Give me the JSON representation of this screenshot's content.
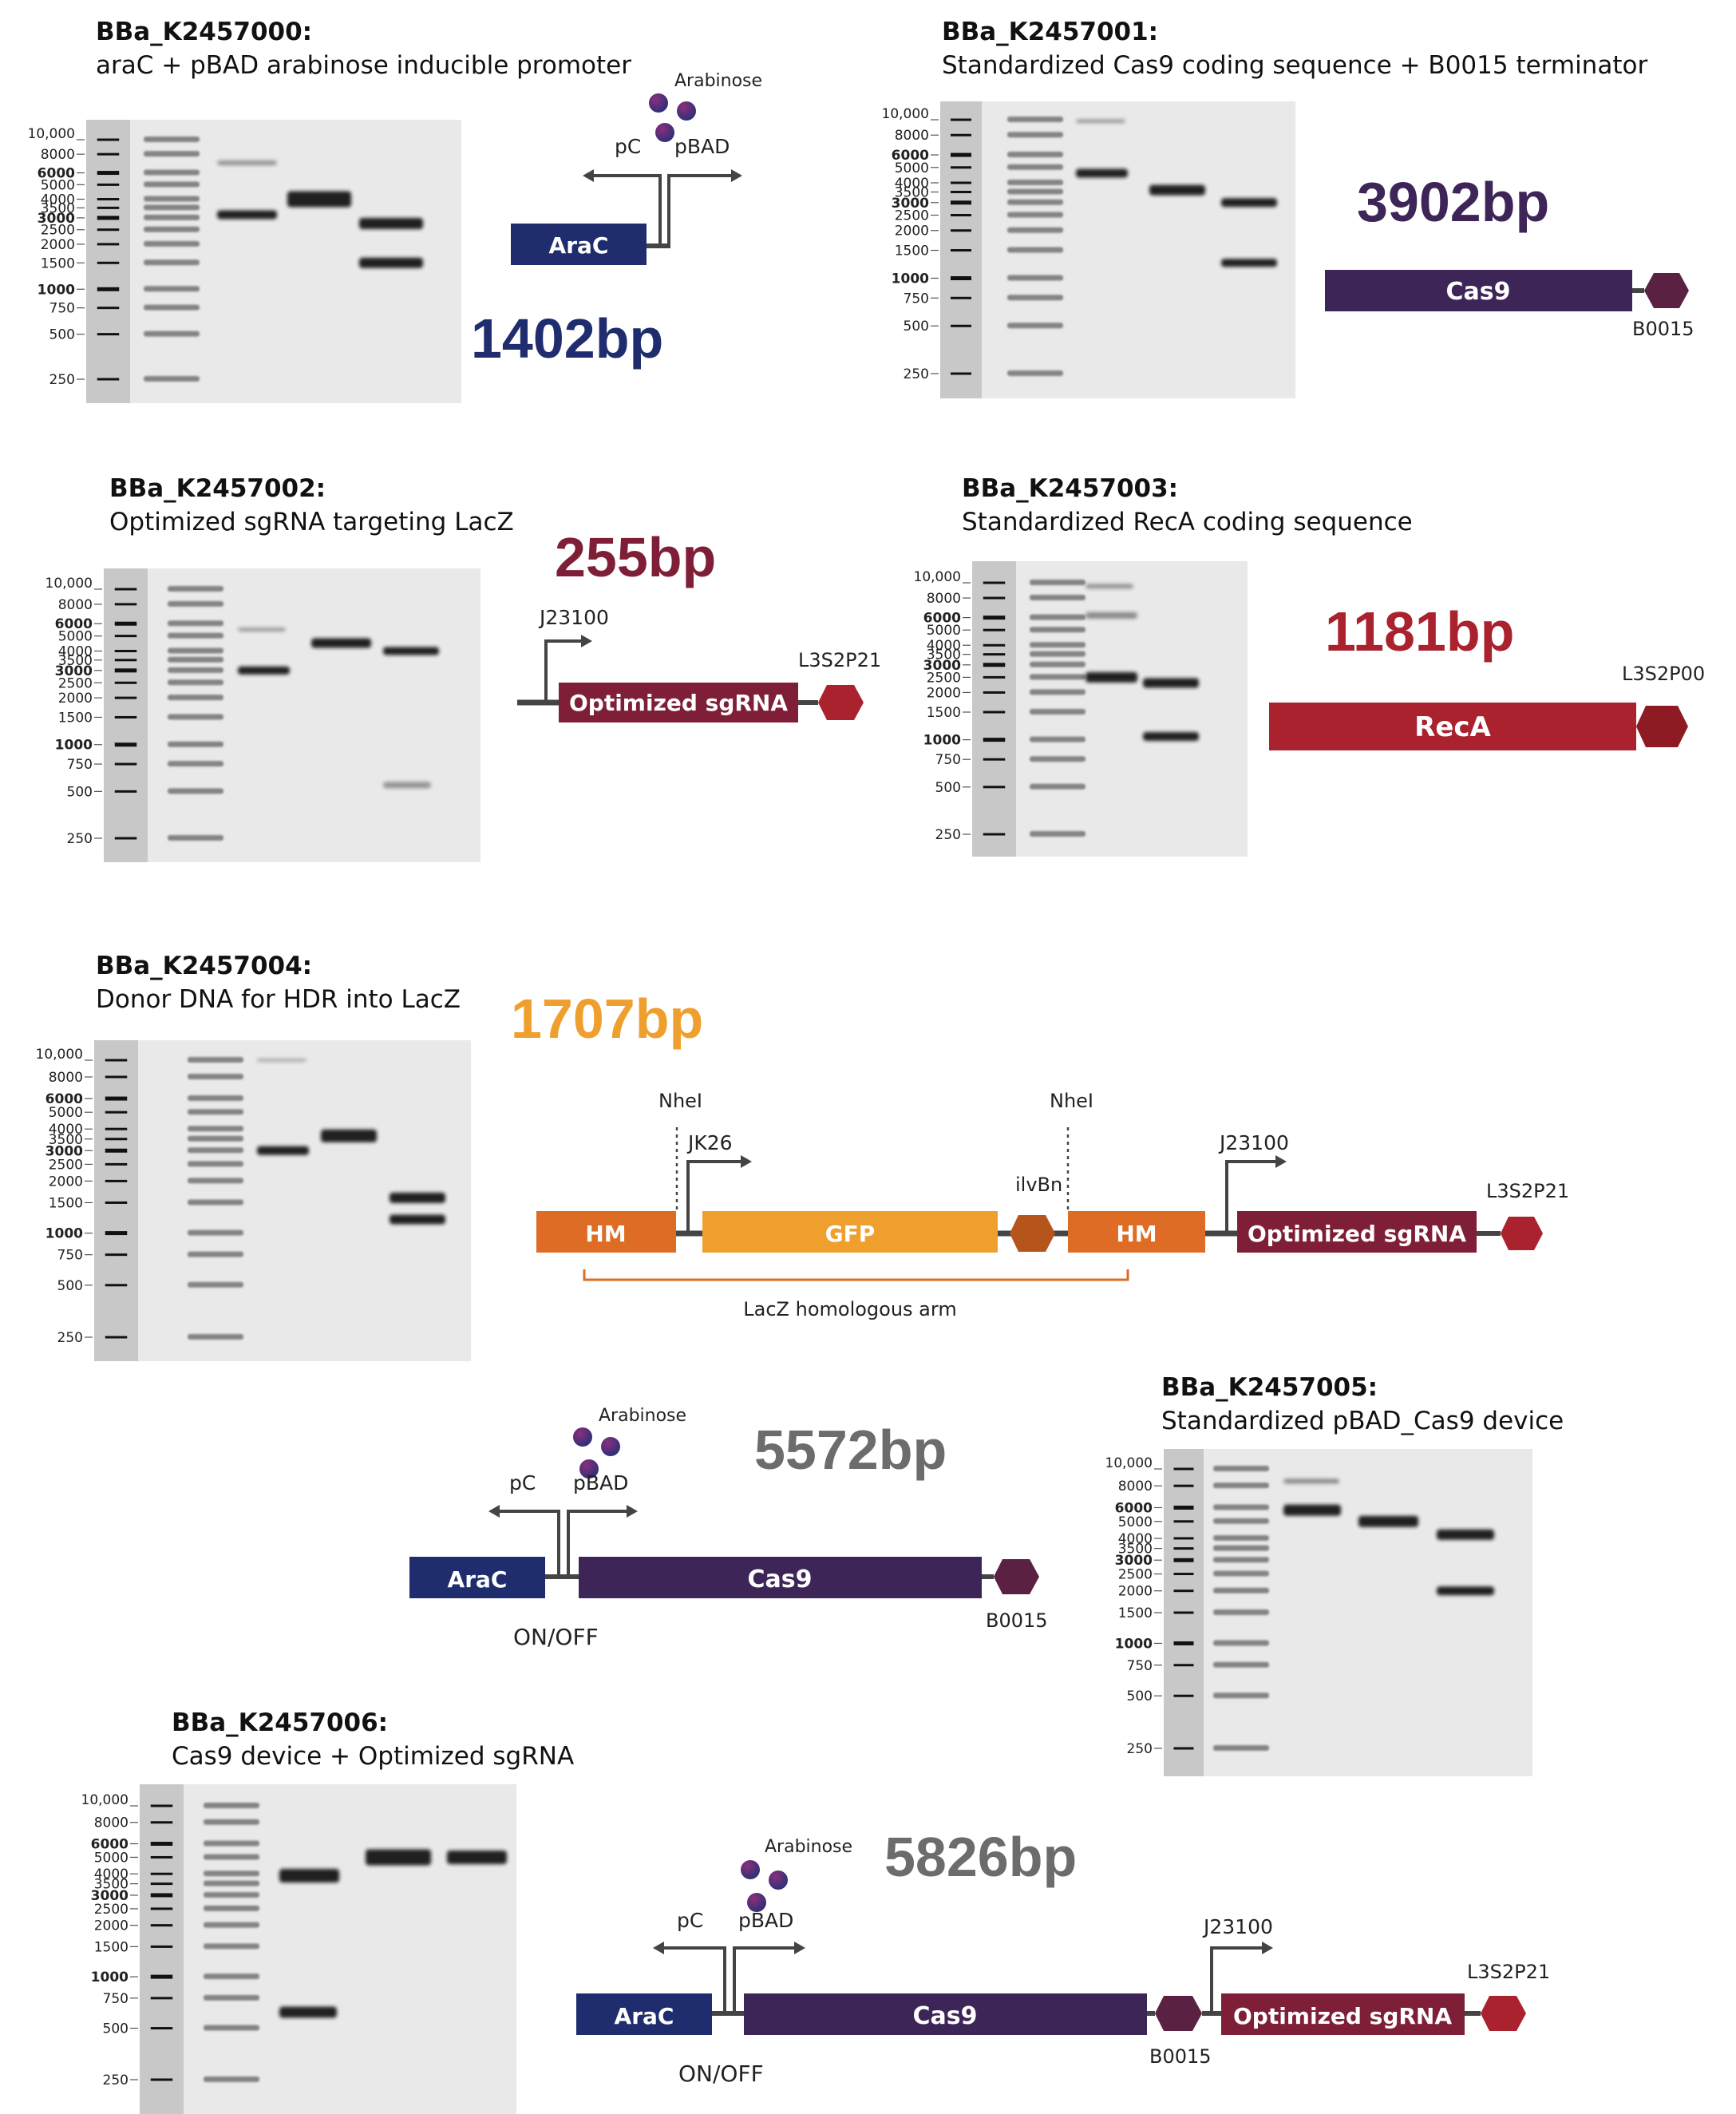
{
  "colors": {
    "navy": "#1f2d6e",
    "purple": "#3e2558",
    "plum": "#5a2143",
    "maroon": "#7f1f37",
    "red": "#a9222e",
    "dark_red": "#8e1a23",
    "orange": "#de6c24",
    "light_orange": "#ef9f2e",
    "dark_orange": "#b5551c",
    "grey_text": "#6c6c6c",
    "gel_ladder": "#c8c8c8",
    "gel_bg": "#e9e9e9",
    "band": "#141414"
  },
  "ladder_labels": [
    "10,000",
    "8000",
    "6000",
    "5000",
    "4000",
    "3500",
    "3000",
    "2500",
    "2000",
    "1500",
    "1000",
    "750",
    "500",
    "250"
  ],
  "ladder_bold": [
    "6000",
    "3000",
    "1000"
  ],
  "parts": {
    "k2457000": {
      "id": "BBa_K2457000:",
      "description": "araC + pBAD arabinose inducible promoter",
      "length": "1402bp",
      "diagram": {
        "inducer": "Arabinose",
        "promoter_left": "pC",
        "promoter_right": "pBAD",
        "gene": "AraC"
      }
    },
    "k2457001": {
      "id": "BBa_K2457001:",
      "description": "Standardized Cas9 coding sequence + B0015 terminator",
      "length": "3902bp",
      "diagram": {
        "gene": "Cas9",
        "terminator": "B0015"
      }
    },
    "k2457002": {
      "id": "BBa_K2457002:",
      "description": "Optimized sgRNA targeting LacZ",
      "length": "255bp",
      "diagram": {
        "promoter": "J23100",
        "gene": "Optimized sgRNA",
        "terminator": "L3S2P21"
      }
    },
    "k2457003": {
      "id": "BBa_K2457003:",
      "description": "Standardized RecA coding sequence",
      "length": "1181bp",
      "diagram": {
        "gene": "RecA",
        "terminator": "L3S2P00"
      }
    },
    "k2457004": {
      "id": "BBa_K2457004:",
      "description": "Donor DNA for HDR into LacZ",
      "length": "1707bp",
      "diagram": {
        "site_left": "NheI",
        "site_right": "NheI",
        "promoter_jk": "JK26",
        "promoter_j": "J23100",
        "rbs": "ilvBn",
        "terminator": "L3S2P21",
        "hm_left": "HM",
        "gfp": "GFP",
        "hm_right": "HM",
        "sgrna": "Optimized sgRNA",
        "arm_label": "LacZ homologous arm"
      }
    },
    "k2457005": {
      "id": "BBa_K2457005:",
      "description": "Standardized pBAD_Cas9 device",
      "length": "5572bp",
      "diagram": {
        "inducer": "Arabinose",
        "promoter_left": "pC",
        "promoter_right": "pBAD",
        "gene_left": "AraC",
        "gene_right": "Cas9",
        "terminator": "B0015",
        "switch": "ON/OFF"
      }
    },
    "k2457006": {
      "id": "BBa_K2457006:",
      "description": "Cas9 device + Optimized sgRNA",
      "length": "5826bp",
      "diagram": {
        "inducer": "Arabinose",
        "promoter_left": "pC",
        "promoter_right": "pBAD",
        "promoter_j": "J23100",
        "gene_left": "AraC",
        "gene_mid": "Cas9",
        "gene_right": "Optimized sgRNA",
        "terminator_mid": "B0015",
        "terminator_right": "L3S2P21",
        "switch": "ON/OFF"
      }
    }
  }
}
